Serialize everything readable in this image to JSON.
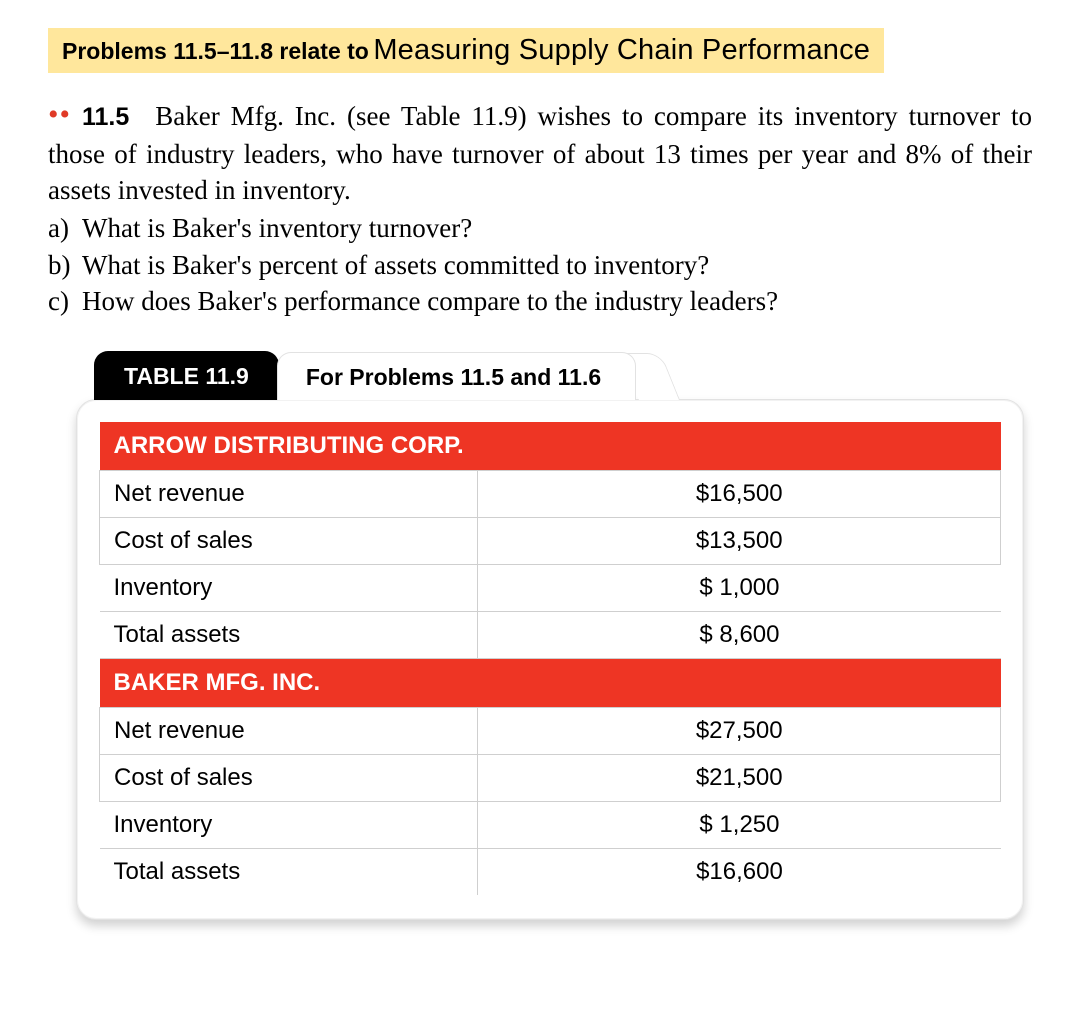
{
  "header": {
    "lead": "Problems 11.5–11.8 relate to",
    "topic": "Measuring Supply Chain Performance"
  },
  "problem": {
    "dots": "••",
    "number": "11.5",
    "text": "Baker Mfg. Inc. (see Table 11.9) wishes to compare its inventory turnover to those of industry leaders, who have turnover of about 13 times per year and 8% of their assets invested in inventory."
  },
  "questions": {
    "a_label": "a)",
    "a_text": "What is Baker's inventory turnover?",
    "b_label": "b)",
    "b_text": "What is Baker's percent of assets committed to inventory?",
    "c_label": "c)",
    "c_text": "How does Baker's performance compare to the industry leaders?"
  },
  "table": {
    "tab_title": "TABLE 11.9",
    "tab_subtitle": "For Problems 11.5 and 11.6",
    "header_color": "#ee3524",
    "section1": {
      "title": "ARROW DISTRIBUTING CORP.",
      "rows": [
        {
          "label": "Net revenue",
          "value": "$16,500"
        },
        {
          "label": "Cost of sales",
          "value": "$13,500"
        },
        {
          "label": "Inventory",
          "value": "$ 1,000"
        },
        {
          "label": "Total assets",
          "value": "$ 8,600"
        }
      ]
    },
    "section2": {
      "title": "BAKER MFG. INC.",
      "rows": [
        {
          "label": "Net revenue",
          "value": "$27,500"
        },
        {
          "label": "Cost of sales",
          "value": "$21,500"
        },
        {
          "label": "Inventory",
          "value": "$ 1,250"
        },
        {
          "label": "Total assets",
          "value": "$16,600"
        }
      ]
    }
  }
}
